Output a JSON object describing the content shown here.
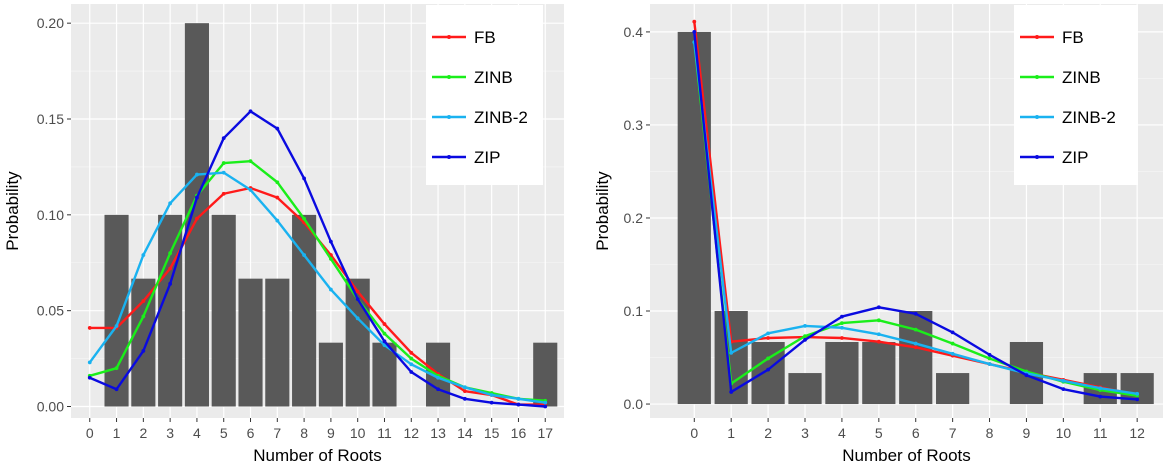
{
  "chart_data": [
    {
      "type": "bar",
      "xlabel": "Number of Roots",
      "ylabel": "Probability",
      "xlim": [
        -0.7,
        17.7
      ],
      "ylim": [
        -0.006,
        0.21
      ],
      "xticks": [
        0,
        1,
        2,
        3,
        4,
        5,
        6,
        7,
        8,
        9,
        10,
        11,
        12,
        13,
        14,
        15,
        16,
        17
      ],
      "yticks": [
        "0.00",
        "0.05",
        "0.10",
        "0.15",
        "0.20"
      ],
      "ytick_values": [
        0,
        0.05,
        0.1,
        0.15,
        0.2
      ],
      "legend_position": "top-right",
      "grid": true,
      "bar_color": "#595959",
      "bars": [
        {
          "x": 1,
          "value": 0.1
        },
        {
          "x": 2,
          "value": 0.0667
        },
        {
          "x": 3,
          "value": 0.1
        },
        {
          "x": 4,
          "value": 0.2
        },
        {
          "x": 5,
          "value": 0.1
        },
        {
          "x": 6,
          "value": 0.0667
        },
        {
          "x": 7,
          "value": 0.0667
        },
        {
          "x": 8,
          "value": 0.1
        },
        {
          "x": 9,
          "value": 0.0333
        },
        {
          "x": 10,
          "value": 0.0667
        },
        {
          "x": 11,
          "value": 0.0333
        },
        {
          "x": 13,
          "value": 0.0333
        },
        {
          "x": 17,
          "value": 0.0333
        }
      ],
      "series": [
        {
          "name": "FB",
          "color": "#ff1a1a",
          "values": [
            0.041,
            0.041,
            0.055,
            0.072,
            0.098,
            0.111,
            0.114,
            0.109,
            0.096,
            0.079,
            0.06,
            0.043,
            0.028,
            0.017,
            0.008,
            0.006,
            0.001,
            0.001
          ]
        },
        {
          "name": "ZINB",
          "color": "#1aee1a",
          "values": [
            0.016,
            0.02,
            0.047,
            0.08,
            0.11,
            0.127,
            0.128,
            0.117,
            0.098,
            0.077,
            0.056,
            0.038,
            0.025,
            0.016,
            0.01,
            0.007,
            0.004,
            0.003
          ]
        },
        {
          "name": "ZINB-2",
          "color": "#1ab2f0",
          "values": [
            0.023,
            0.042,
            0.079,
            0.106,
            0.121,
            0.122,
            0.113,
            0.097,
            0.079,
            0.061,
            0.046,
            0.032,
            0.022,
            0.015,
            0.01,
            0.006,
            0.004,
            0.002
          ]
        },
        {
          "name": "ZIP",
          "color": "#0a0ae0",
          "values": [
            0.015,
            0.009,
            0.029,
            0.064,
            0.109,
            0.14,
            0.154,
            0.145,
            0.119,
            0.086,
            0.056,
            0.034,
            0.018,
            0.009,
            0.004,
            0.002,
            0.001,
            0.0
          ]
        }
      ]
    },
    {
      "type": "bar",
      "xlabel": "Number of Roots",
      "ylabel": "Probability",
      "xlim": [
        -1.2,
        12.7
      ],
      "ylim": [
        -0.015,
        0.43
      ],
      "xticks": [
        0,
        1,
        2,
        3,
        4,
        5,
        6,
        7,
        8,
        9,
        10,
        11,
        12
      ],
      "yticks": [
        "0.0",
        "0.1",
        "0.2",
        "0.3",
        "0.4"
      ],
      "ytick_values": [
        0,
        0.1,
        0.2,
        0.3,
        0.4
      ],
      "legend_position": "top-right",
      "grid": true,
      "bar_color": "#595959",
      "bars": [
        {
          "x": 0,
          "value": 0.4
        },
        {
          "x": 1,
          "value": 0.1
        },
        {
          "x": 2,
          "value": 0.0667
        },
        {
          "x": 3,
          "value": 0.0333
        },
        {
          "x": 4,
          "value": 0.0667
        },
        {
          "x": 5,
          "value": 0.0667
        },
        {
          "x": 6,
          "value": 0.1
        },
        {
          "x": 7,
          "value": 0.0333
        },
        {
          "x": 9,
          "value": 0.0667
        },
        {
          "x": 11,
          "value": 0.0333
        },
        {
          "x": 12,
          "value": 0.0333
        }
      ],
      "series": [
        {
          "name": "FB",
          "color": "#ff1a1a",
          "values": [
            0.411,
            0.067,
            0.071,
            0.072,
            0.071,
            0.067,
            0.061,
            0.052,
            0.043,
            0.034,
            0.026,
            0.018,
            0.01
          ]
        },
        {
          "name": "ZINB",
          "color": "#1aee1a",
          "values": [
            0.389,
            0.022,
            0.049,
            0.073,
            0.087,
            0.09,
            0.08,
            0.065,
            0.049,
            0.035,
            0.024,
            0.015,
            0.009
          ]
        },
        {
          "name": "ZINB-2",
          "color": "#1ab2f0",
          "values": [
            0.389,
            0.055,
            0.076,
            0.084,
            0.082,
            0.075,
            0.065,
            0.054,
            0.043,
            0.033,
            0.025,
            0.017,
            0.011
          ]
        },
        {
          "name": "ZIP",
          "color": "#0a0ae0",
          "values": [
            0.4,
            0.013,
            0.037,
            0.069,
            0.094,
            0.104,
            0.097,
            0.077,
            0.053,
            0.031,
            0.016,
            0.008,
            0.005
          ]
        }
      ]
    }
  ]
}
